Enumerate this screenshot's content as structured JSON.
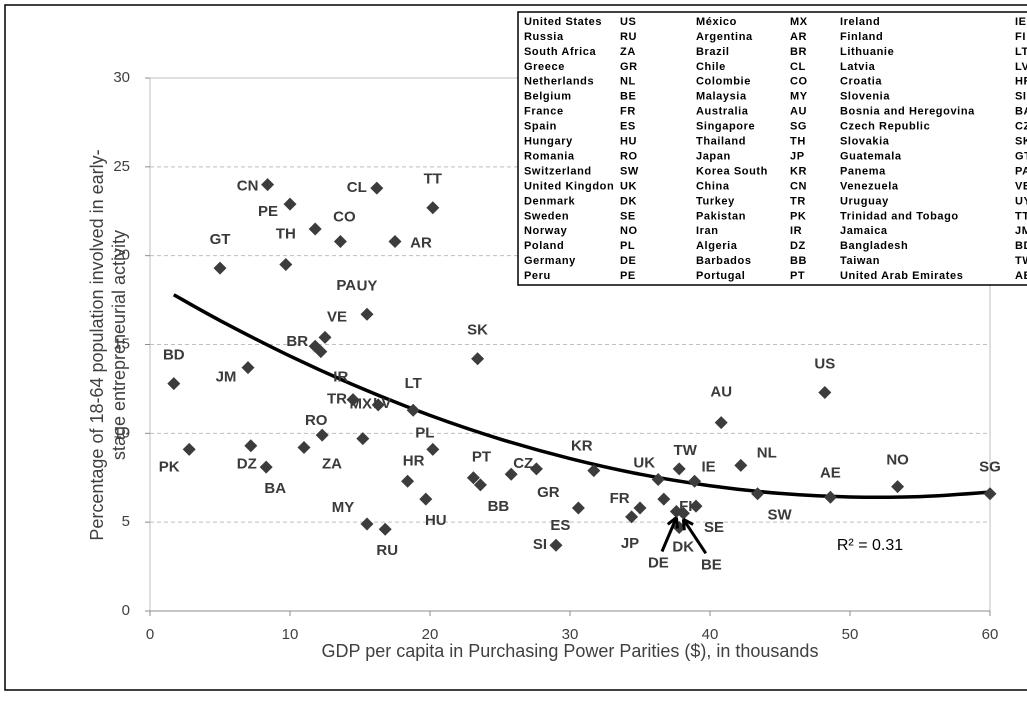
{
  "chart_data": {
    "type": "scatter",
    "xlabel": "GDP per capita in Purchasing Power Parities ($), in thousands",
    "ylabel": [
      "Percentage of 18-64 population involved in early-",
      "stage entrepreneurial activity"
    ],
    "xlim": [
      0,
      60
    ],
    "xticks": [
      0,
      10,
      20,
      30,
      40,
      50,
      60
    ],
    "ylim": [
      0,
      30
    ],
    "yticks": [
      0,
      5,
      10,
      15,
      20,
      25,
      30
    ],
    "grid": true,
    "color": "#3c3c3c",
    "x": [
      1.7,
      2.8,
      5.0,
      7.0,
      7.2,
      8.3,
      8.4,
      10.0,
      9.7,
      11.8,
      13.6,
      16.2,
      20.2,
      17.5,
      15.5,
      12.5,
      11.8,
      12.2,
      14.5,
      15.2,
      16.3,
      18.8,
      23.4,
      12.3,
      11.0,
      20.2,
      18.4,
      19.7,
      15.5,
      16.8,
      23.1,
      23.6,
      25.8,
      27.6,
      31.7,
      30.6,
      29.0,
      34.4,
      35.0,
      36.3,
      37.8,
      38.9,
      36.7,
      37.6,
      38.1,
      37.8,
      39.0,
      40.8,
      42.2,
      43.4,
      48.2,
      48.6,
      53.4,
      60
    ],
    "values": [
      12.8,
      9.1,
      19.3,
      13.7,
      9.3,
      8.1,
      24.0,
      22.9,
      19.5,
      21.5,
      20.8,
      23.8,
      22.7,
      20.8,
      16.7,
      15.4,
      14.9,
      14.6,
      11.9,
      9.7,
      11.6,
      11.3,
      14.2,
      9.9,
      9.2,
      9.1,
      7.3,
      6.3,
      4.9,
      4.6,
      7.5,
      7.1,
      7.7,
      8.0,
      7.9,
      5.8,
      3.7,
      5.3,
      5.8,
      7.4,
      8.0,
      7.3,
      6.3,
      5.6,
      5.5,
      4.7,
      5.9,
      10.6,
      8.2,
      6.6,
      12.3,
      6.4,
      7.0,
      6.6
    ],
    "point_labels": [
      "BD",
      "PK",
      "GT",
      "JM",
      "DZ",
      "BA",
      "CN",
      "PE",
      "TH",
      "PA",
      "CO",
      "CL",
      "TT",
      "AR",
      "UY",
      "VE",
      "BR",
      "IR",
      "TR",
      "MX",
      "LV",
      "LT",
      "SK",
      "RO",
      "ZA",
      "PL",
      "HR",
      "HU",
      "MY",
      "RU",
      "PT",
      "BB",
      "CZ",
      "GR",
      "KR",
      "ES",
      "SI",
      "FR",
      "JP",
      "UK",
      "TW",
      "IE",
      "FI",
      "DE",
      "BE",
      "DK",
      "SE",
      "AU",
      "NL",
      "SW",
      "US",
      "AE",
      "NO",
      "SG"
    ],
    "trendline": {
      "color": "#000000",
      "x": [
        1.7,
        5,
        10,
        15,
        20,
        25,
        30,
        35,
        40,
        45,
        50,
        55,
        60
      ],
      "values": [
        17.8,
        16.35,
        14.35,
        12.57,
        11.01,
        9.68,
        8.58,
        7.7,
        7.05,
        6.62,
        6.42,
        6.44,
        6.69
      ]
    },
    "annotation": "R² = 0.31",
    "legend_table": {
      "rows": [
        [
          "United States",
          "US",
          "México",
          "MX",
          "Ireland",
          "IE"
        ],
        [
          "Russia",
          "RU",
          "Argentina",
          "AR",
          "Finland",
          "FI"
        ],
        [
          "South Africa",
          "ZA",
          "Brazil",
          "BR",
          "Lithuanie",
          "LT"
        ],
        [
          "Greece",
          "GR",
          "Chile",
          "CL",
          "Latvia",
          "LV"
        ],
        [
          "Netherlands",
          "NL",
          "Colombie",
          "CO",
          "Croatia",
          "HR"
        ],
        [
          "Belgium",
          "BE",
          "Malaysia",
          "MY",
          "Slovenia",
          "SI"
        ],
        [
          "France",
          "FR",
          "Australia",
          "AU",
          "Bosnia and Heregovina",
          "BA"
        ],
        [
          "Spain",
          "ES",
          "Singapore",
          "SG",
          "Czech Republic",
          "CZ"
        ],
        [
          "Hungary",
          "HU",
          "Thailand",
          "TH",
          "Slovakia",
          "SK"
        ],
        [
          "Romania",
          "RO",
          "Japan",
          "JP",
          "Guatemala",
          "GT"
        ],
        [
          "Switzerland",
          "SW",
          "Korea South",
          "KR",
          "Panema",
          "PA"
        ],
        [
          "United Kingdon",
          "UK",
          "China",
          "CN",
          "Venezuela",
          "VE"
        ],
        [
          "Denmark",
          "DK",
          "Turkey",
          "TR",
          "Uruguay",
          "UY"
        ],
        [
          "Sweden",
          "SE",
          "Pakistan",
          "PK",
          "Trinidad and Tobago",
          "TT"
        ],
        [
          "Norway",
          "NO",
          "Iran",
          "IR",
          "Jamaica",
          "JM"
        ],
        [
          "Poland",
          "PL",
          "Algeria",
          "DZ",
          "Bangladesh",
          "BD"
        ],
        [
          "Germany",
          "DE",
          "Barbados",
          "BB",
          "Taiwan",
          "TW"
        ],
        [
          "Peru",
          "PE",
          "Portugal",
          "PT",
          "United Arab Emirates",
          "AE"
        ]
      ]
    }
  }
}
